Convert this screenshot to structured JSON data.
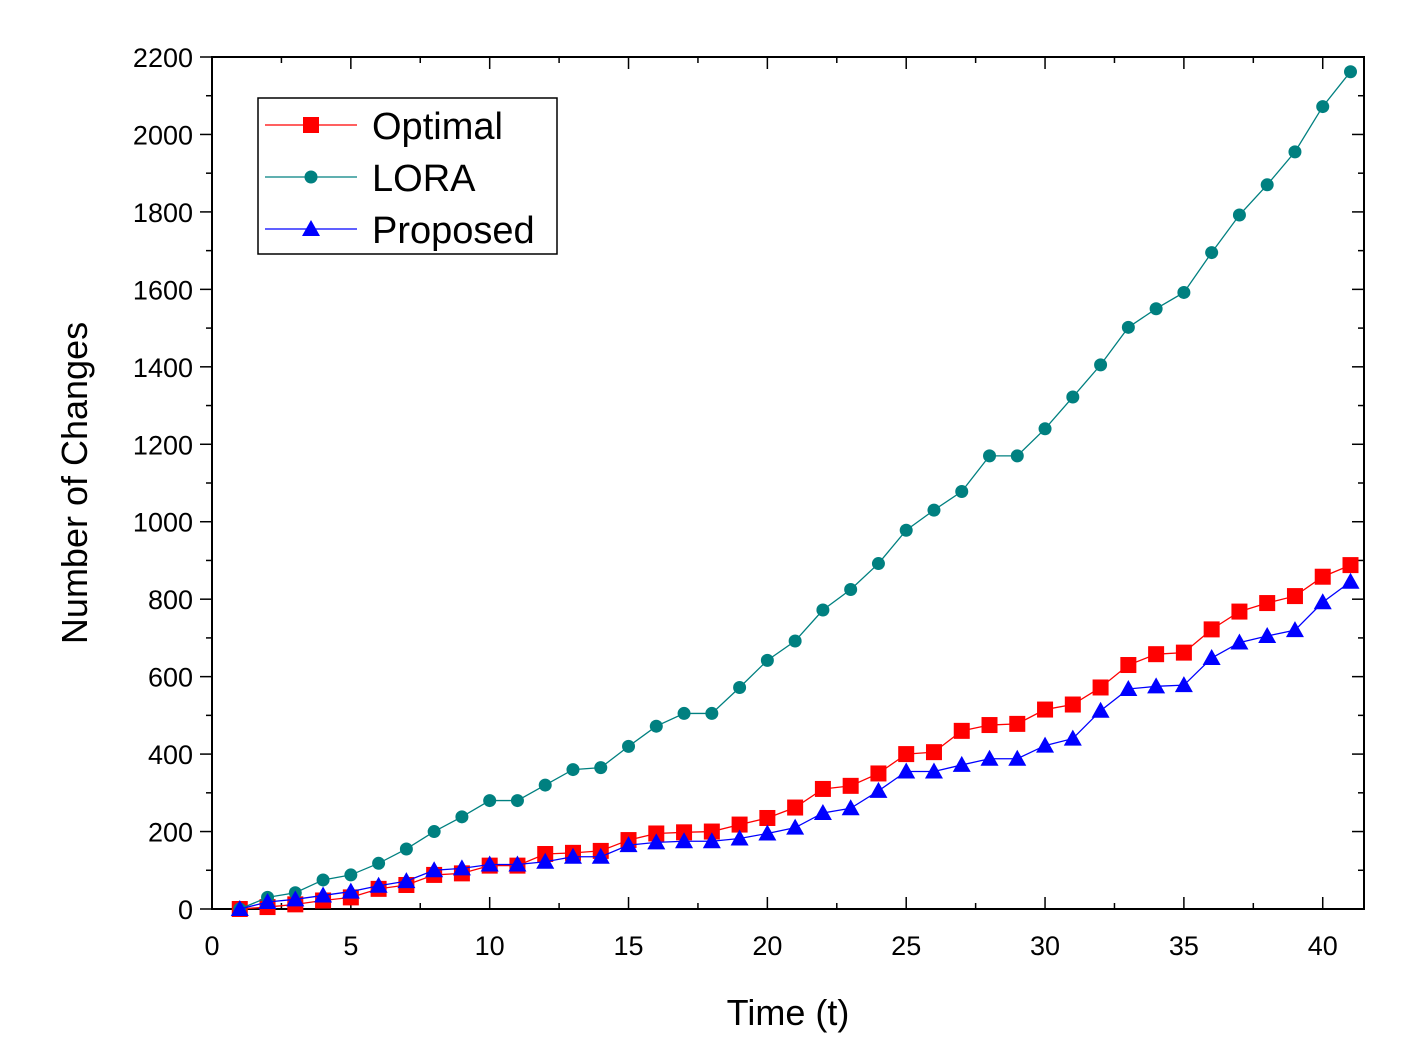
{
  "chart_data": {
    "type": "line",
    "xlabel": "Time (t)",
    "ylabel": "Number of Changes",
    "xlim": [
      0,
      42
    ],
    "ylim": [
      0,
      2200
    ],
    "xticks": [
      0,
      5,
      10,
      15,
      20,
      25,
      30,
      35,
      40
    ],
    "yticks": [
      0,
      200,
      400,
      600,
      800,
      1000,
      1200,
      1400,
      1600,
      1800,
      2000,
      2200
    ],
    "grid": false,
    "legend_position": "top-left",
    "x": [
      1,
      2,
      3,
      4,
      5,
      6,
      7,
      8,
      9,
      10,
      11,
      12,
      13,
      14,
      15,
      16,
      17,
      18,
      19,
      20,
      21,
      22,
      23,
      24,
      25,
      26,
      27,
      28,
      29,
      30,
      31,
      32,
      33,
      34,
      35,
      36,
      37,
      38,
      39,
      40,
      41
    ],
    "series": [
      {
        "name": "Optimal",
        "color": "#ff0000",
        "marker": "square",
        "values": [
          0,
          5,
          12,
          22,
          30,
          52,
          62,
          88,
          92,
          112,
          112,
          142,
          145,
          150,
          178,
          195,
          198,
          200,
          218,
          235,
          262,
          310,
          318,
          350,
          400,
          405,
          460,
          475,
          478,
          515,
          528,
          572,
          630,
          658,
          662,
          722,
          768,
          790,
          808,
          858,
          888
        ]
      },
      {
        "name": "LORA",
        "color": "#008080",
        "marker": "circle",
        "values": [
          0,
          30,
          42,
          75,
          88,
          118,
          155,
          200,
          238,
          280,
          280,
          320,
          360,
          365,
          420,
          472,
          505,
          505,
          572,
          642,
          692,
          772,
          825,
          892,
          978,
          1030,
          1078,
          1170,
          1170,
          1240,
          1322,
          1405,
          1502,
          1550,
          1592,
          1695,
          1792,
          1870,
          1955,
          2072,
          2162
        ]
      },
      {
        "name": "Proposed",
        "color": "#0000ff",
        "marker": "triangle",
        "values": [
          0,
          18,
          25,
          35,
          45,
          60,
          72,
          100,
          105,
          115,
          115,
          122,
          135,
          135,
          165,
          172,
          175,
          175,
          182,
          195,
          210,
          248,
          260,
          305,
          355,
          355,
          372,
          388,
          388,
          422,
          440,
          512,
          568,
          575,
          578,
          648,
          688,
          705,
          720,
          792,
          845
        ]
      }
    ]
  }
}
